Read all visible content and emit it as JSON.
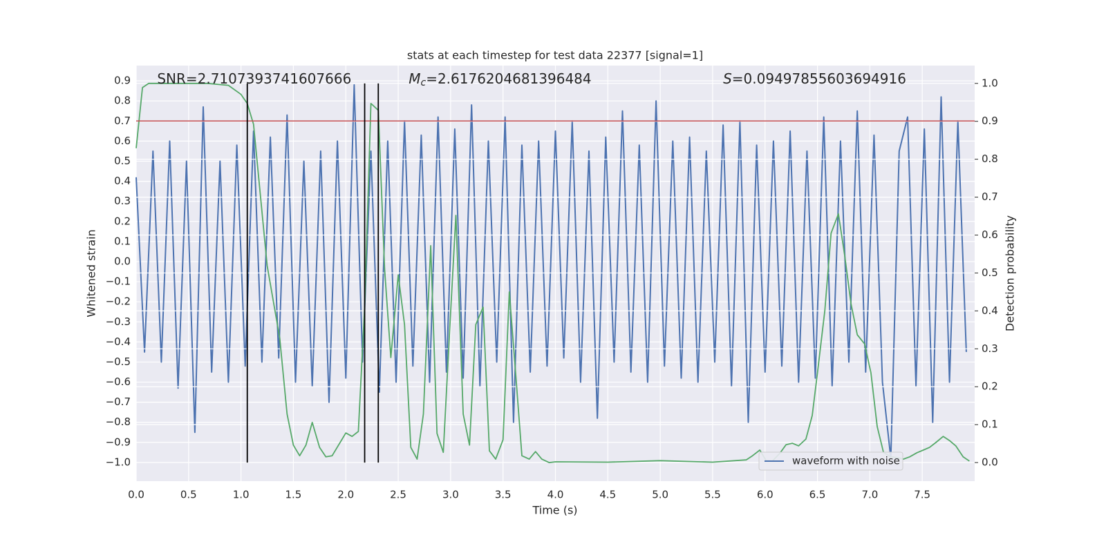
{
  "chart_data": {
    "type": "line",
    "title": "stats at each timestep for test data 22377 [signal=1]",
    "xlabel": "Time (s)",
    "ylabel": "Whitened strain",
    "y2label": "Detection probability",
    "xlim": [
      0,
      8.0
    ],
    "ylim": [
      -1.093,
      0.976
    ],
    "y2lim": [
      -0.049,
      1.047
    ],
    "xticks": [
      {
        "value": 0,
        "label": "0.0"
      },
      0.5,
      {
        "value": 1,
        "label": "1.0"
      },
      1.5,
      {
        "value": 2,
        "label": "2.0"
      },
      2.5,
      {
        "value": 3,
        "label": "3.0"
      },
      3.5,
      {
        "value": 4,
        "label": "4.0"
      },
      4.5,
      {
        "value": 5,
        "label": "5.0"
      },
      5.5,
      {
        "value": 6,
        "label": "6.0"
      },
      6.5,
      {
        "value": 7,
        "label": "7.0"
      },
      7.5
    ],
    "yticks": [
      {
        "value": -1.0,
        "label": "−1.0"
      },
      {
        "value": -0.9,
        "label": "−0.9"
      },
      {
        "value": -0.8,
        "label": "−0.8"
      },
      {
        "value": -0.7,
        "label": "−0.7"
      },
      {
        "value": -0.6,
        "label": "−0.6"
      },
      {
        "value": -0.5,
        "label": "−0.5"
      },
      {
        "value": -0.4,
        "label": "−0.4"
      },
      {
        "value": -0.3,
        "label": "−0.3"
      },
      {
        "value": -0.2,
        "label": "−0.2"
      },
      {
        "value": -0.1,
        "label": "−0.1"
      },
      {
        "value": 0,
        "label": "0.0"
      },
      0.1,
      0.2,
      0.3,
      0.4,
      0.5,
      0.6,
      0.7,
      0.8,
      0.9
    ],
    "y2ticks": [
      {
        "value": 0,
        "label": "0.0"
      },
      0.1,
      0.2,
      0.3,
      0.4,
      0.5,
      0.6,
      0.7,
      0.8,
      0.9,
      {
        "value": 1,
        "label": "1.0"
      }
    ],
    "grid": true,
    "legend": "lower right",
    "annotations": [
      {
        "text": "SNR=2.7107393741607666",
        "x": 0.2
      },
      {
        "symbol": "M",
        "subscript": "c",
        "text": "=2.6176204681396484",
        "x": 2.6
      },
      {
        "symbol": "S",
        "text": "=0.09497855603694916",
        "x": 5.6
      }
    ],
    "hline": {
      "y": 0.7,
      "color": "#c44e52"
    },
    "vlines": {
      "x": [
        1.06,
        2.18,
        2.31
      ],
      "y2range": [
        0,
        1
      ],
      "color": "#000000"
    },
    "series": [
      {
        "name": "waveform with noise",
        "color": "#4c72b0",
        "x": [
          0,
          0.08,
          0.16,
          0.24,
          0.32,
          0.4,
          0.48,
          0.56,
          0.64,
          0.72,
          0.8,
          0.88,
          0.96,
          1.04,
          1.12,
          1.2,
          1.28,
          1.36,
          1.44,
          1.52,
          1.6,
          1.68,
          1.76,
          1.84,
          1.92,
          2.0,
          2.08,
          2.16,
          2.24,
          2.32,
          2.4,
          2.48,
          2.56,
          2.64,
          2.72,
          2.8,
          2.88,
          2.96,
          3.04,
          3.12,
          3.2,
          3.28,
          3.36,
          3.44,
          3.52,
          3.6,
          3.68,
          3.76,
          3.84,
          3.92,
          4.0,
          4.08,
          4.16,
          4.24,
          4.32,
          4.4,
          4.48,
          4.56,
          4.64,
          4.72,
          4.8,
          4.88,
          4.96,
          5.04,
          5.12,
          5.2,
          5.28,
          5.36,
          5.44,
          5.52,
          5.6,
          5.68,
          5.76,
          5.84,
          5.92,
          6.0,
          6.08,
          6.16,
          6.24,
          6.32,
          6.4,
          6.48,
          6.56,
          6.64,
          6.72,
          6.8,
          6.88,
          6.96,
          7.04,
          7.12,
          7.2,
          7.28,
          7.36,
          7.44,
          7.52,
          7.6,
          7.68,
          7.76,
          7.84,
          7.92
        ],
        "values": [
          0.42,
          -0.45,
          0.55,
          -0.5,
          0.6,
          -0.63,
          0.5,
          -0.85,
          0.77,
          -0.55,
          0.5,
          -0.6,
          0.58,
          -0.52,
          0.65,
          -0.5,
          0.62,
          -0.48,
          0.73,
          -0.6,
          0.5,
          -0.62,
          0.55,
          -0.7,
          0.6,
          -0.58,
          0.88,
          -0.5,
          0.55,
          -0.65,
          0.6,
          -0.6,
          0.7,
          -0.52,
          0.63,
          -0.6,
          0.72,
          -0.55,
          0.66,
          -0.58,
          0.78,
          -0.62,
          0.6,
          -0.5,
          0.72,
          -0.8,
          0.58,
          -0.55,
          0.6,
          -0.52,
          0.65,
          -0.48,
          0.7,
          -0.6,
          0.55,
          -0.78,
          0.62,
          -0.5,
          0.75,
          -0.55,
          0.58,
          -0.6,
          0.8,
          -0.52,
          0.6,
          -0.58,
          0.62,
          -0.6,
          0.55,
          -0.5,
          0.68,
          -0.62,
          0.7,
          -0.8,
          0.58,
          -0.55,
          0.6,
          -0.52,
          0.65,
          -0.6,
          0.55,
          -0.58,
          0.72,
          -0.62,
          0.6,
          -0.5,
          0.75,
          -0.55,
          0.63,
          -0.6,
          -0.98,
          0.55,
          0.72,
          -0.62,
          0.66,
          -0.8,
          0.82,
          -0.6,
          0.7,
          -0.45
        ]
      },
      {
        "color": "#55a868",
        "axis": "y2",
        "x": [
          0,
          0.06,
          0.12,
          0.68,
          0.88,
          1.0,
          1.06,
          1.12,
          1.25,
          1.37,
          1.44,
          1.5,
          1.56,
          1.62,
          1.68,
          1.75,
          1.81,
          1.87,
          2.0,
          2.06,
          2.12,
          2.18,
          2.24,
          2.31,
          2.37,
          2.43,
          2.5,
          2.56,
          2.62,
          2.68,
          2.74,
          2.81,
          2.87,
          2.93,
          2.99,
          3.05,
          3.12,
          3.18,
          3.24,
          3.31,
          3.37,
          3.43,
          3.5,
          3.56,
          3.62,
          3.68,
          3.75,
          3.81,
          3.87,
          3.94,
          4.0,
          4.5,
          5.0,
          5.5,
          5.82,
          5.88,
          5.95,
          6.01,
          6.07,
          6.14,
          6.2,
          6.26,
          6.32,
          6.39,
          6.45,
          6.5,
          6.57,
          6.63,
          6.7,
          6.76,
          6.82,
          6.88,
          6.95,
          7.01,
          7.07,
          7.13,
          7.2,
          7.26,
          7.32,
          7.38,
          7.45,
          7.51,
          7.57,
          7.63,
          7.7,
          7.76,
          7.82,
          7.89,
          7.95
        ],
        "values": [
          0.829,
          0.989,
          1.0,
          1.0,
          0.995,
          0.971,
          0.947,
          0.892,
          0.519,
          0.328,
          0.128,
          0.046,
          0.018,
          0.046,
          0.106,
          0.04,
          0.015,
          0.018,
          0.078,
          0.069,
          0.082,
          0.41,
          0.947,
          0.929,
          0.51,
          0.277,
          0.495,
          0.364,
          0.04,
          0.009,
          0.128,
          0.572,
          0.077,
          0.027,
          0.346,
          0.652,
          0.128,
          0.046,
          0.364,
          0.41,
          0.031,
          0.009,
          0.06,
          0.45,
          0.237,
          0.018,
          0.009,
          0.029,
          0.009,
          0.0,
          0.002,
          0.001,
          0.005,
          0.001,
          0.007,
          0.018,
          0.033,
          0.005,
          0.004,
          0.024,
          0.047,
          0.051,
          0.044,
          0.062,
          0.124,
          0.237,
          0.4,
          0.605,
          0.656,
          0.546,
          0.419,
          0.337,
          0.313,
          0.237,
          0.095,
          0.027,
          0.015,
          0.013,
          0.009,
          0.015,
          0.026,
          0.033,
          0.04,
          0.053,
          0.069,
          0.058,
          0.044,
          0.015,
          0.004
        ]
      }
    ]
  }
}
